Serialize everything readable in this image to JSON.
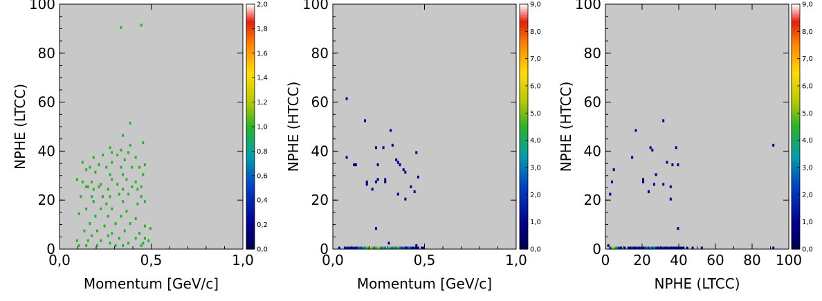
{
  "chart_data": [
    {
      "type": "heatmap",
      "xlabel": "Momentum [GeV/c]",
      "ylabel": "NPHE (LTCC)",
      "xlim": [
        0.0,
        1.0
      ],
      "ylim": [
        0,
        100
      ],
      "xticks": [
        "0,0",
        "0,5",
        "1,0"
      ],
      "yticks": [
        "0",
        "20",
        "40",
        "60",
        "80",
        "100"
      ],
      "colorbar": {
        "min": 0.0,
        "max": 2.0,
        "ticks": [
          "0,0",
          "0,2",
          "0,4",
          "0,6",
          "0,8",
          "1,0",
          "1,2",
          "1,4",
          "1,6",
          "1,8",
          "2,0"
        ]
      },
      "grid": false,
      "background": "#c8c8c8",
      "points": [
        [
          0.33,
          90,
          1
        ],
        [
          0.44,
          91,
          1
        ],
        [
          0.38,
          51,
          1
        ],
        [
          0.34,
          46,
          1
        ],
        [
          0.27,
          41,
          1
        ],
        [
          0.29,
          39,
          1
        ],
        [
          0.38,
          42,
          1
        ],
        [
          0.45,
          43,
          1
        ],
        [
          0.33,
          40,
          1
        ],
        [
          0.37,
          39,
          1
        ],
        [
          0.31,
          38,
          1
        ],
        [
          0.18,
          37,
          1
        ],
        [
          0.23,
          38,
          1
        ],
        [
          0.12,
          35,
          1
        ],
        [
          0.16,
          33,
          1
        ],
        [
          0.21,
          34,
          1
        ],
        [
          0.29,
          35,
          1
        ],
        [
          0.35,
          36,
          1
        ],
        [
          0.41,
          37,
          1
        ],
        [
          0.47,
          34,
          1
        ],
        [
          0.25,
          33,
          1
        ],
        [
          0.33,
          33,
          1
        ],
        [
          0.39,
          33,
          1
        ],
        [
          0.43,
          33,
          1
        ],
        [
          0.14,
          32,
          1
        ],
        [
          0.19,
          31,
          1
        ],
        [
          0.27,
          30,
          1
        ],
        [
          0.34,
          30,
          1
        ],
        [
          0.45,
          30,
          1
        ],
        [
          0.09,
          28,
          1
        ],
        [
          0.12,
          27,
          1
        ],
        [
          0.17,
          27,
          1
        ],
        [
          0.22,
          26,
          1
        ],
        [
          0.29,
          28,
          1
        ],
        [
          0.36,
          28,
          1
        ],
        [
          0.41,
          27,
          1
        ],
        [
          0.14,
          25,
          1
        ],
        [
          0.15,
          25,
          1
        ],
        [
          0.21,
          25,
          1
        ],
        [
          0.31,
          26,
          1
        ],
        [
          0.39,
          25,
          1
        ],
        [
          0.44,
          25,
          1
        ],
        [
          0.18,
          24,
          1
        ],
        [
          0.26,
          24,
          1
        ],
        [
          0.34,
          24,
          1
        ],
        [
          0.42,
          24,
          1
        ],
        [
          0.11,
          21,
          1
        ],
        [
          0.17,
          21,
          1
        ],
        [
          0.23,
          21,
          1
        ],
        [
          0.27,
          21,
          1
        ],
        [
          0.32,
          22,
          1
        ],
        [
          0.37,
          22,
          1
        ],
        [
          0.44,
          21,
          1
        ],
        [
          0.18,
          19,
          1
        ],
        [
          0.25,
          18,
          1
        ],
        [
          0.34,
          19,
          1
        ],
        [
          0.42,
          18,
          1
        ],
        [
          0.47,
          19,
          1
        ],
        [
          0.14,
          16,
          1
        ],
        [
          0.22,
          16,
          1
        ],
        [
          0.29,
          16,
          1
        ],
        [
          0.36,
          15,
          1
        ],
        [
          0.1,
          14,
          1
        ],
        [
          0.19,
          13,
          1
        ],
        [
          0.26,
          13,
          1
        ],
        [
          0.33,
          13,
          1
        ],
        [
          0.41,
          12,
          1
        ],
        [
          0.16,
          10,
          1
        ],
        [
          0.24,
          9,
          1
        ],
        [
          0.3,
          10,
          1
        ],
        [
          0.38,
          10,
          1
        ],
        [
          0.46,
          9,
          1
        ],
        [
          0.13,
          7,
          1
        ],
        [
          0.2,
          7,
          1
        ],
        [
          0.28,
          6,
          1
        ],
        [
          0.35,
          7,
          1
        ],
        [
          0.43,
          6,
          1
        ],
        [
          0.49,
          8,
          1
        ],
        [
          0.17,
          5,
          1
        ],
        [
          0.26,
          5,
          1
        ],
        [
          0.32,
          4,
          1
        ],
        [
          0.41,
          4,
          1
        ],
        [
          0.47,
          4,
          1
        ],
        [
          0.09,
          3,
          1
        ],
        [
          0.15,
          3,
          1
        ],
        [
          0.22,
          3,
          1
        ],
        [
          0.27,
          2,
          1
        ],
        [
          0.37,
          2,
          1
        ],
        [
          0.45,
          2,
          1
        ],
        [
          0.48,
          3,
          1
        ],
        [
          0.1,
          1,
          1
        ],
        [
          0.14,
          1,
          1
        ],
        [
          0.2,
          1,
          1
        ],
        [
          0.3,
          1,
          1
        ],
        [
          0.34,
          1,
          1
        ],
        [
          0.44,
          1,
          1
        ]
      ]
    },
    {
      "type": "heatmap",
      "xlabel": "Momentum [GeV/c]",
      "ylabel": "NPHE (HTCC)",
      "xlim": [
        0.0,
        1.0
      ],
      "ylim": [
        0,
        100
      ],
      "xticks": [
        "0,0",
        "0,5",
        "1,0"
      ],
      "yticks": [
        "0",
        "20",
        "40",
        "60",
        "80",
        "100"
      ],
      "colorbar": {
        "min": 0.0,
        "max": 9.0,
        "ticks": [
          "0,0",
          "1,0",
          "2,0",
          "3,0",
          "4,0",
          "5,0",
          "6,0",
          "7,0",
          "8,0",
          "9,0"
        ]
      },
      "grid": false,
      "background": "#c8c8c8",
      "points": [
        [
          0.07,
          61,
          1
        ],
        [
          0.17,
          52,
          1
        ],
        [
          0.31,
          48,
          1
        ],
        [
          0.23,
          41,
          1
        ],
        [
          0.27,
          41,
          1
        ],
        [
          0.32,
          42,
          1
        ],
        [
          0.45,
          39,
          1
        ],
        [
          0.07,
          37,
          1
        ],
        [
          0.11,
          34,
          1
        ],
        [
          0.12,
          34,
          1
        ],
        [
          0.34,
          36,
          1
        ],
        [
          0.35,
          35,
          1
        ],
        [
          0.36,
          34,
          1
        ],
        [
          0.24,
          34,
          1
        ],
        [
          0.38,
          32,
          1
        ],
        [
          0.39,
          31,
          1
        ],
        [
          0.46,
          29,
          1
        ],
        [
          0.18,
          27,
          1
        ],
        [
          0.18,
          26,
          1
        ],
        [
          0.23,
          27,
          1
        ],
        [
          0.24,
          28,
          1
        ],
        [
          0.28,
          28,
          1
        ],
        [
          0.29,
          27,
          1
        ],
        [
          0.21,
          24,
          1
        ],
        [
          0.42,
          25,
          1
        ],
        [
          0.44,
          23,
          1
        ],
        [
          0.35,
          22,
          1
        ],
        [
          0.39,
          20,
          1
        ],
        [
          0.23,
          8,
          1
        ],
        [
          0.3,
          2,
          1
        ],
        [
          0.45,
          1,
          1
        ],
        [
          0.03,
          0,
          1
        ],
        [
          0.06,
          0,
          1
        ],
        [
          0.07,
          0,
          2
        ],
        [
          0.08,
          0,
          1
        ],
        [
          0.09,
          0,
          2
        ],
        [
          0.1,
          0,
          1
        ],
        [
          0.11,
          0,
          2
        ],
        [
          0.12,
          0,
          1
        ],
        [
          0.13,
          0,
          2
        ],
        [
          0.14,
          0,
          3
        ],
        [
          0.15,
          0,
          2
        ],
        [
          0.16,
          0,
          4
        ],
        [
          0.17,
          0,
          3
        ],
        [
          0.18,
          0,
          5
        ],
        [
          0.19,
          0,
          4
        ],
        [
          0.2,
          0,
          6
        ],
        [
          0.21,
          0,
          5
        ],
        [
          0.22,
          0,
          3
        ],
        [
          0.23,
          0,
          4
        ],
        [
          0.24,
          0,
          7
        ],
        [
          0.25,
          0,
          5
        ],
        [
          0.26,
          0,
          3
        ],
        [
          0.27,
          0,
          4
        ],
        [
          0.28,
          0,
          6
        ],
        [
          0.29,
          0,
          3
        ],
        [
          0.3,
          0,
          5
        ],
        [
          0.31,
          0,
          4
        ],
        [
          0.32,
          0,
          3
        ],
        [
          0.33,
          0,
          4
        ],
        [
          0.34,
          0,
          3
        ],
        [
          0.35,
          0,
          5
        ],
        [
          0.36,
          0,
          3
        ],
        [
          0.37,
          0,
          2
        ],
        [
          0.38,
          0,
          3
        ],
        [
          0.39,
          0,
          2
        ],
        [
          0.4,
          0,
          2
        ],
        [
          0.41,
          0,
          3
        ],
        [
          0.42,
          0,
          2
        ],
        [
          0.43,
          0,
          1
        ],
        [
          0.44,
          0,
          2
        ],
        [
          0.45,
          0,
          1
        ],
        [
          0.47,
          0,
          1
        ],
        [
          0.48,
          0,
          1
        ],
        [
          0.49,
          0,
          1
        ]
      ]
    },
    {
      "type": "heatmap",
      "xlabel": "NPHE (LTCC)",
      "ylabel": "NPHE (HTCC)",
      "xlim": [
        0,
        100
      ],
      "ylim": [
        0,
        100
      ],
      "xticks": [
        "0",
        "20",
        "40",
        "60",
        "80",
        "100"
      ],
      "yticks": [
        "0",
        "20",
        "40",
        "60",
        "80",
        "100"
      ],
      "colorbar": {
        "min": 0.0,
        "max": 9.0,
        "ticks": [
          "0,0",
          "1,0",
          "2,0",
          "3,0",
          "4,0",
          "5,0",
          "6,0",
          "7,0",
          "8,0",
          "9,0"
        ]
      },
      "grid": false,
      "background": "#c8c8c8",
      "points": [
        [
          31,
          52,
          1
        ],
        [
          16,
          48,
          1
        ],
        [
          24,
          41,
          1
        ],
        [
          38,
          41,
          1
        ],
        [
          25,
          40,
          1
        ],
        [
          91,
          42,
          1
        ],
        [
          14,
          37,
          1
        ],
        [
          33,
          35,
          1
        ],
        [
          36,
          34,
          1
        ],
        [
          39,
          34,
          1
        ],
        [
          4,
          32,
          1
        ],
        [
          27,
          30,
          1
        ],
        [
          20,
          28,
          1
        ],
        [
          20,
          27,
          1
        ],
        [
          26,
          26,
          1
        ],
        [
          31,
          26,
          1
        ],
        [
          35,
          25,
          1
        ],
        [
          23,
          23,
          1
        ],
        [
          2,
          22,
          1
        ],
        [
          3,
          27,
          1
        ],
        [
          35,
          20,
          1
        ],
        [
          39,
          8,
          1
        ],
        [
          1,
          1,
          1
        ],
        [
          2,
          0,
          2
        ],
        [
          3,
          0,
          5
        ],
        [
          4,
          0,
          6
        ],
        [
          5,
          0,
          4
        ],
        [
          6,
          0,
          3
        ],
        [
          7,
          0,
          2
        ],
        [
          8,
          0,
          1
        ],
        [
          10,
          0,
          1
        ],
        [
          12,
          0,
          1
        ],
        [
          13,
          0,
          1
        ],
        [
          14,
          0,
          2
        ],
        [
          15,
          0,
          1
        ],
        [
          16,
          0,
          1
        ],
        [
          17,
          0,
          2
        ],
        [
          18,
          0,
          1
        ],
        [
          19,
          0,
          2
        ],
        [
          20,
          0,
          1
        ],
        [
          21,
          0,
          2
        ],
        [
          22,
          0,
          3
        ],
        [
          23,
          0,
          2
        ],
        [
          24,
          0,
          4
        ],
        [
          25,
          0,
          2
        ],
        [
          26,
          0,
          3
        ],
        [
          27,
          0,
          2
        ],
        [
          28,
          0,
          1
        ],
        [
          29,
          0,
          2
        ],
        [
          30,
          0,
          1
        ],
        [
          31,
          0,
          2
        ],
        [
          32,
          0,
          1
        ],
        [
          33,
          0,
          1
        ],
        [
          34,
          0,
          2
        ],
        [
          35,
          0,
          1
        ],
        [
          36,
          0,
          1
        ],
        [
          37,
          0,
          1
        ],
        [
          38,
          0,
          1
        ],
        [
          39,
          0,
          1
        ],
        [
          40,
          0,
          1
        ],
        [
          41,
          0,
          1
        ],
        [
          42,
          0,
          1
        ],
        [
          44,
          0,
          1
        ],
        [
          47,
          0,
          1
        ],
        [
          52,
          0,
          1
        ],
        [
          91,
          0,
          1
        ]
      ]
    }
  ]
}
